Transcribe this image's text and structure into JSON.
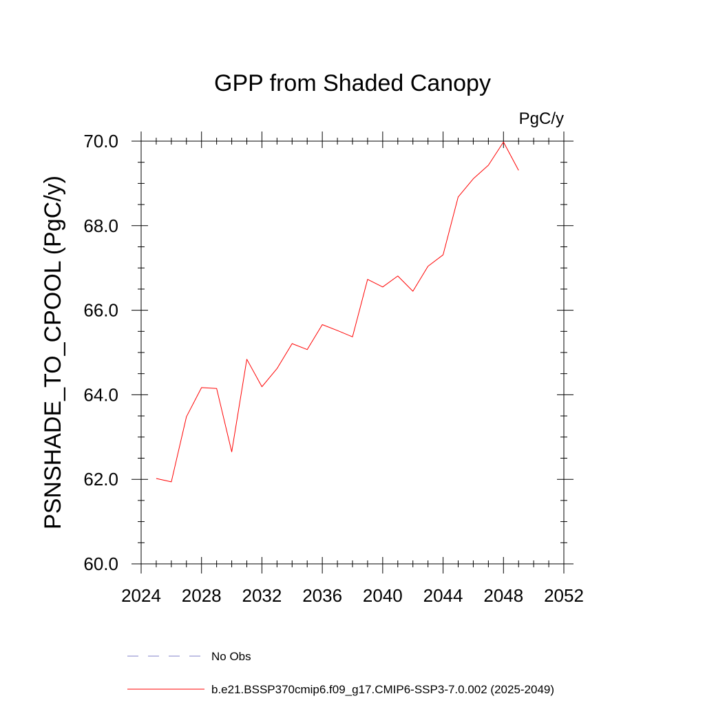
{
  "chart_data": {
    "type": "line",
    "title": "GPP from Shaded Canopy",
    "units": "PgC/y",
    "xlabel": "",
    "ylabel": "PSNSHADE_TO_CPOOL  (PgC/y)",
    "xlim": [
      2024,
      2052
    ],
    "ylim": [
      60.0,
      70.0
    ],
    "x_ticks": [
      "2024",
      "2028",
      "2032",
      "2036",
      "2040",
      "2044",
      "2048",
      "2052"
    ],
    "x_tick_values": [
      2024,
      2028,
      2032,
      2036,
      2040,
      2044,
      2048,
      2052
    ],
    "y_ticks": [
      "60.0",
      "62.0",
      "64.0",
      "66.0",
      "68.0",
      "70.0"
    ],
    "y_tick_values": [
      60,
      62,
      64,
      66,
      68,
      70
    ],
    "grid": false,
    "legend_position": "bottom",
    "series": [
      {
        "name": "b.e21.BSSP370cmip6.f09_g17.CMIP6-SSP3-7.0.002 (2025-2049)",
        "color": "#ff0000",
        "style": "solid",
        "x": [
          2025,
          2026,
          2027,
          2028,
          2029,
          2030,
          2031,
          2032,
          2033,
          2034,
          2035,
          2036,
          2037,
          2038,
          2039,
          2040,
          2041,
          2042,
          2043,
          2044,
          2045,
          2046,
          2047,
          2048,
          2049
        ],
        "values": [
          62.02,
          61.94,
          63.48,
          64.17,
          64.15,
          62.65,
          64.84,
          64.19,
          64.62,
          65.21,
          65.07,
          65.66,
          65.52,
          65.37,
          66.73,
          66.55,
          66.81,
          66.45,
          67.04,
          67.31,
          68.68,
          69.11,
          69.43,
          69.98,
          69.31
        ]
      }
    ],
    "legend": [
      {
        "label": "No Obs",
        "color": "#8080c8",
        "style": "dashed"
      },
      {
        "label": "b.e21.BSSP370cmip6.f09_g17.CMIP6-SSP3-7.0.002 (2025-2049)",
        "color": "#ff0000",
        "style": "solid"
      }
    ]
  }
}
